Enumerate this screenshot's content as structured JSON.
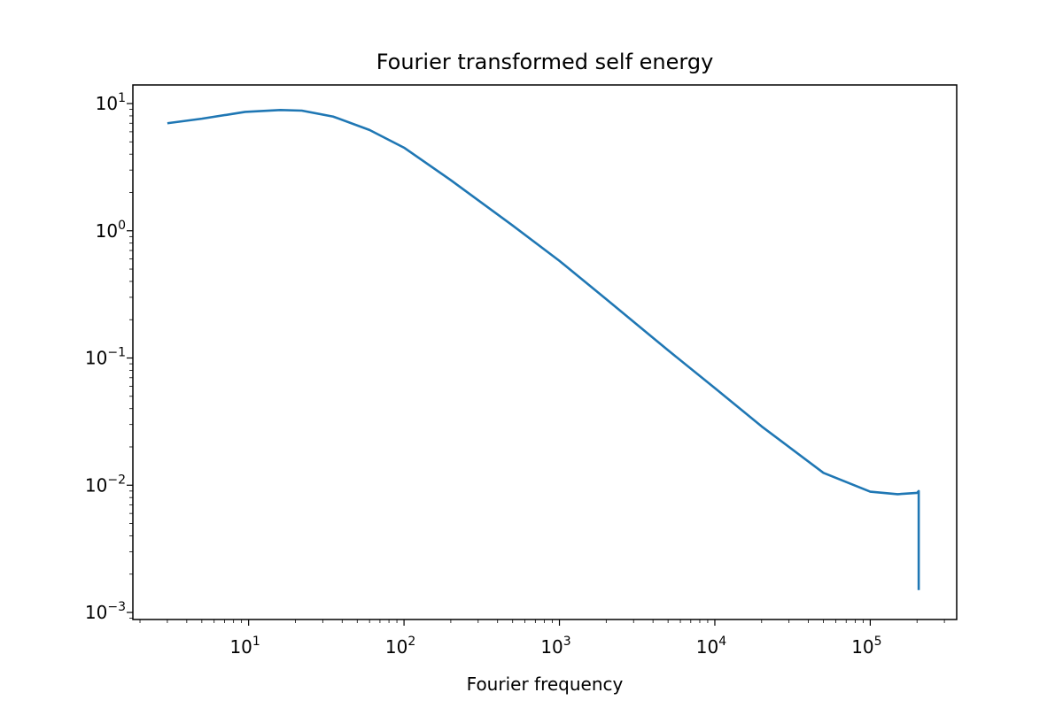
{
  "chart_data": {
    "type": "line",
    "title": "Fourier transformed self energy",
    "xlabel": "Fourier frequency",
    "ylabel": "",
    "xscale": "log",
    "yscale": "log",
    "xlim": [
      1.8,
      360000
    ],
    "ylim": [
      0.00088,
      14
    ],
    "x_ticks": [
      {
        "value": 10,
        "base": "10",
        "exp": "1"
      },
      {
        "value": 100,
        "base": "10",
        "exp": "2"
      },
      {
        "value": 1000,
        "base": "10",
        "exp": "3"
      },
      {
        "value": 10000,
        "base": "10",
        "exp": "4"
      },
      {
        "value": 100000,
        "base": "10",
        "exp": "5"
      }
    ],
    "y_ticks": [
      {
        "value": 10,
        "base": "10",
        "exp": "1"
      },
      {
        "value": 1,
        "base": "10",
        "exp": "0"
      },
      {
        "value": 0.1,
        "base": "10",
        "exp": "−1"
      },
      {
        "value": 0.01,
        "base": "10",
        "exp": "−2"
      },
      {
        "value": 0.001,
        "base": "10",
        "exp": "−3"
      }
    ],
    "grid": false,
    "legend": "none",
    "line_color": "#1f77b4",
    "series": [
      {
        "x": [
          3,
          5,
          9.5,
          16,
          22,
          35,
          60,
          100,
          200,
          500,
          1000,
          2000,
          5000,
          10000,
          20000,
          50000,
          100000,
          150000,
          200000,
          205000,
          205000
        ],
        "y": [
          7.0,
          7.6,
          8.6,
          8.9,
          8.8,
          7.9,
          6.2,
          4.5,
          2.5,
          1.1,
          0.58,
          0.29,
          0.115,
          0.058,
          0.029,
          0.0125,
          0.0089,
          0.0085,
          0.0087,
          0.009,
          0.0015
        ]
      }
    ]
  }
}
